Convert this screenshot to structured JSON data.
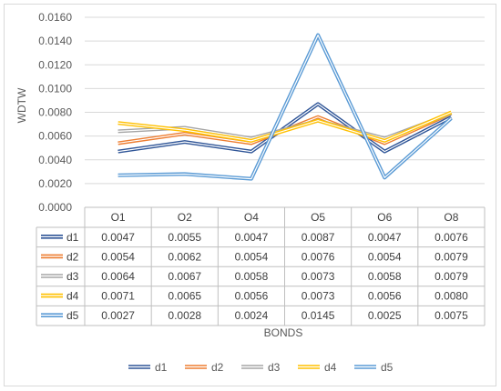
{
  "chart_data": {
    "type": "line",
    "title": "",
    "xlabel": "BONDS",
    "ylabel": "WDTW",
    "categories": [
      "O1",
      "O2",
      "O4",
      "O5",
      "O6",
      "O8"
    ],
    "ylim": [
      0,
      0.016
    ],
    "ytick_step": 0.002,
    "ytick_decimals": 4,
    "grid": true,
    "legend_position": "bottom",
    "data_table": true,
    "series": [
      {
        "name": "d1",
        "color": "#2f5597",
        "values": [
          0.0047,
          0.0055,
          0.0047,
          0.0087,
          0.0047,
          0.0076
        ]
      },
      {
        "name": "d2",
        "color": "#ed7d31",
        "values": [
          0.0054,
          0.0062,
          0.0054,
          0.0076,
          0.0054,
          0.0079
        ]
      },
      {
        "name": "d3",
        "color": "#a5a5a5",
        "values": [
          0.0064,
          0.0067,
          0.0058,
          0.0073,
          0.0058,
          0.0079
        ]
      },
      {
        "name": "d4",
        "color": "#ffc000",
        "values": [
          0.0071,
          0.0065,
          0.0056,
          0.0073,
          0.0056,
          0.008
        ]
      },
      {
        "name": "d5",
        "color": "#5b9bd5",
        "values": [
          0.0027,
          0.0028,
          0.0024,
          0.0145,
          0.0025,
          0.0075
        ]
      }
    ]
  }
}
